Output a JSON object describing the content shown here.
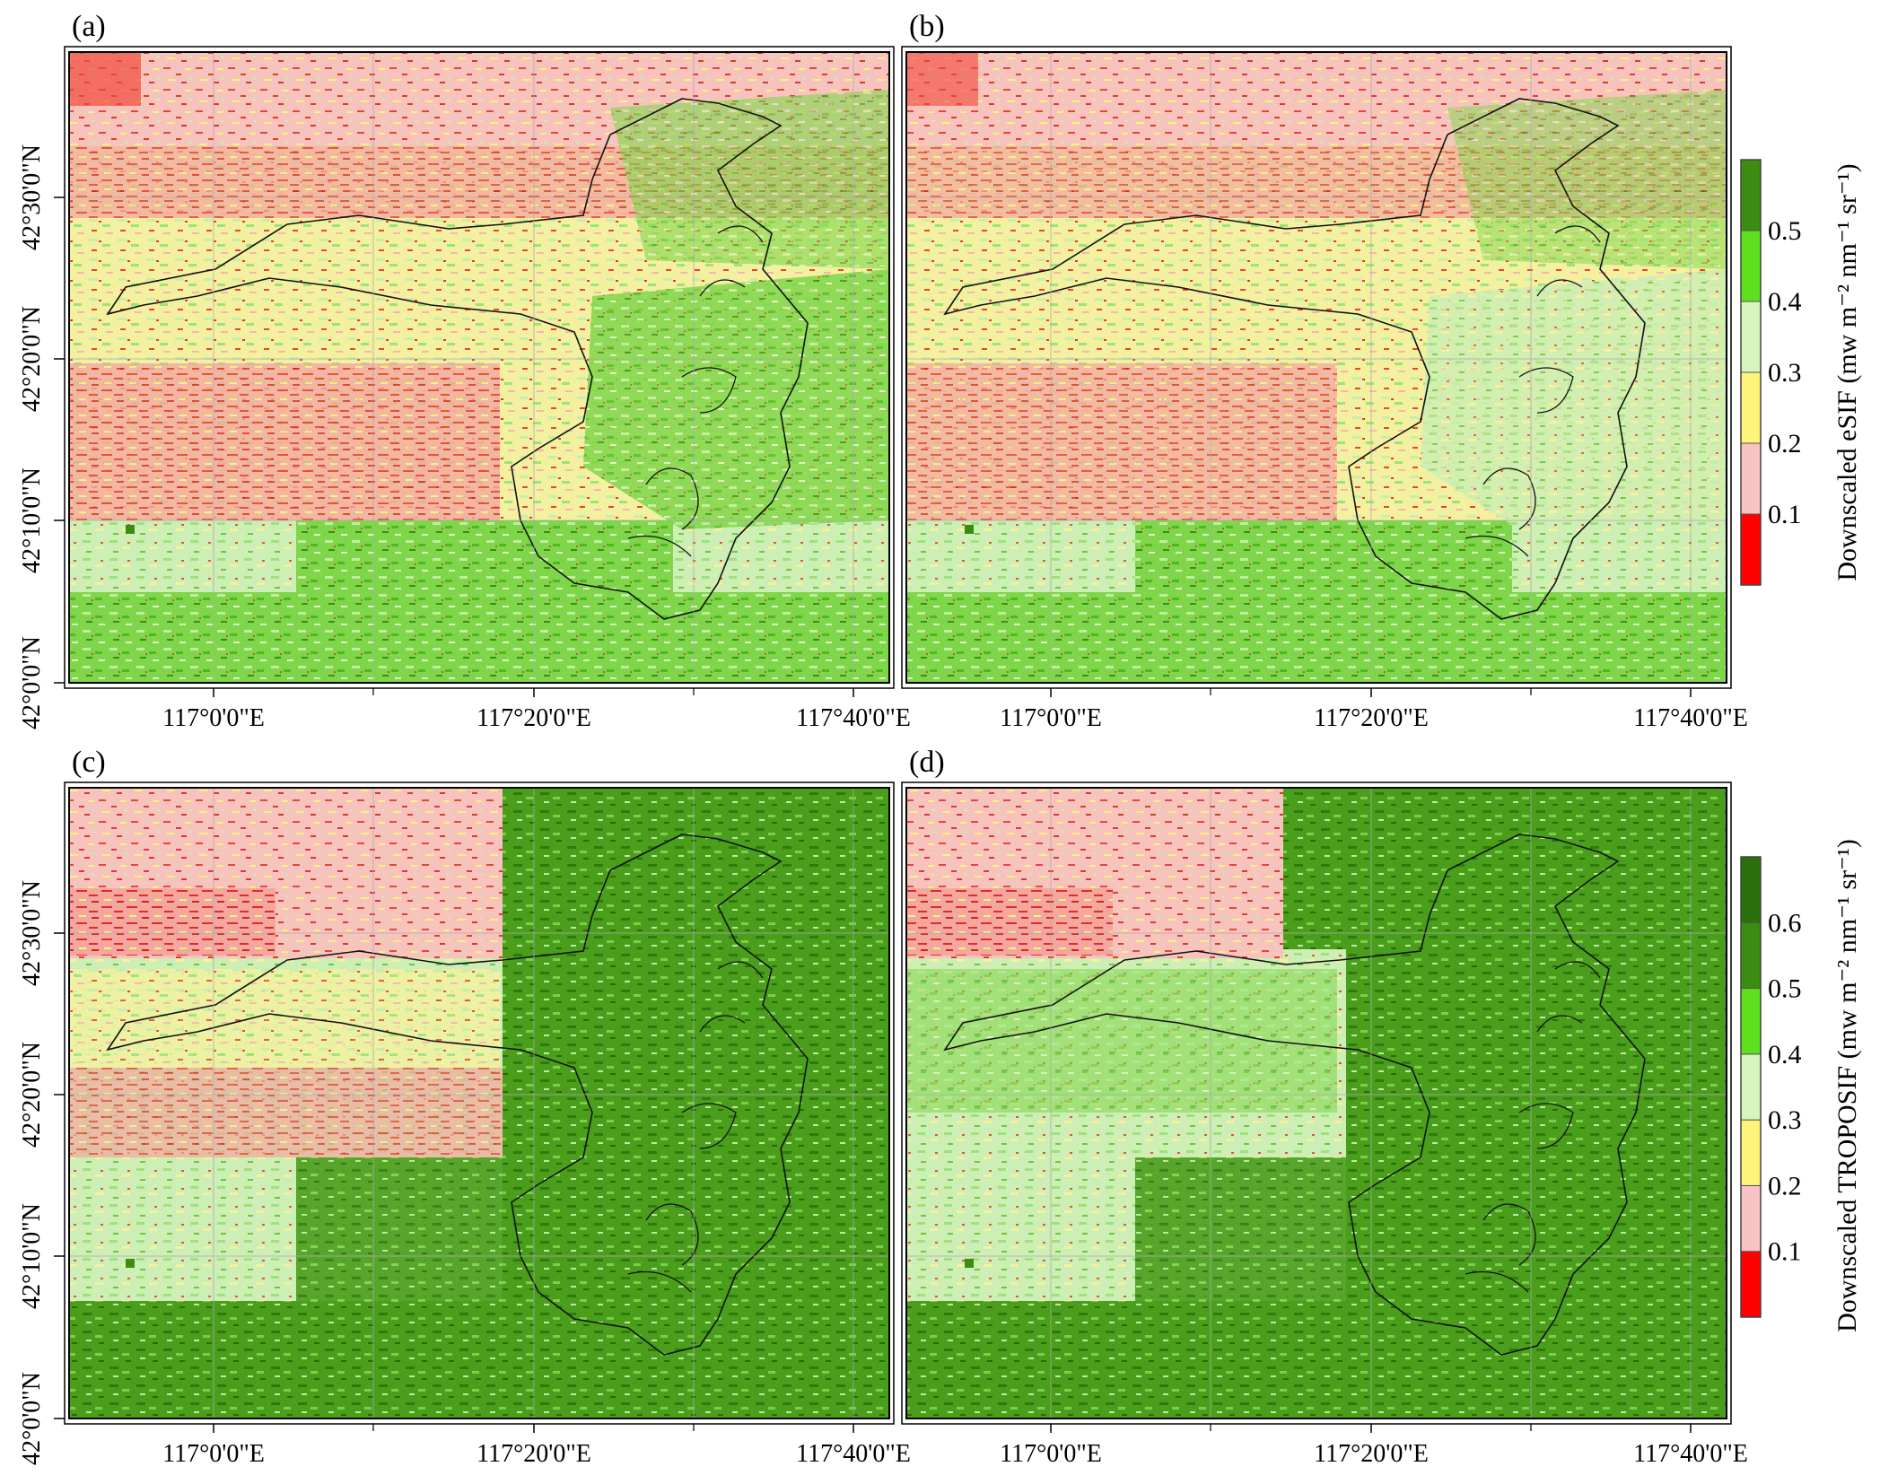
{
  "panels": [
    {
      "label": "(a)"
    },
    {
      "label": "(b)"
    },
    {
      "label": "(c)"
    },
    {
      "label": "(d)"
    }
  ],
  "lat_ticks": [
    "42°0'0\"N",
    "42°10'0\"N",
    "42°20'0\"N",
    "42°30'0\"N"
  ],
  "lon_ticks": [
    "117°0'0\"E",
    "117°20'0\"E",
    "117°40'0\"E"
  ],
  "legends": [
    {
      "title": "Downscaled eSIF (mw m⁻² nm⁻¹ sr⁻¹)",
      "labels": [
        "0.1",
        "0.2",
        "0.3",
        "0.4",
        "0.5"
      ],
      "colors": [
        "#ff0000",
        "#f9c3c3",
        "#fff47a",
        "#d6f5bd",
        "#5fe01f",
        "#3b8c10"
      ]
    },
    {
      "title": "Downscaled TROPOSIF (mw m⁻² nm⁻¹ sr⁻¹)",
      "labels": [
        "0.1",
        "0.2",
        "0.3",
        "0.4",
        "0.5",
        "0.6"
      ],
      "colors": [
        "#ff0000",
        "#f9c3c3",
        "#fff47a",
        "#d6f5bd",
        "#5fe01f",
        "#3b8c10",
        "#2b6f0a"
      ]
    }
  ]
}
